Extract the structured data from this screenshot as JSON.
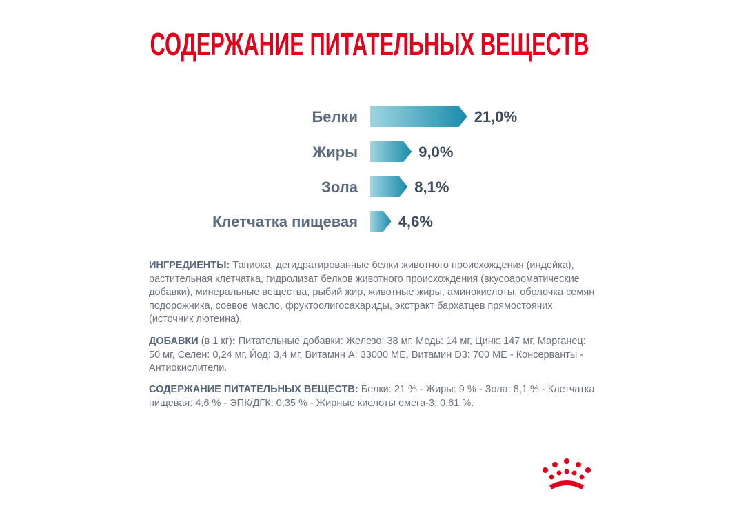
{
  "chart_data": {
    "type": "bar",
    "orientation": "horizontal",
    "title": "СОДЕРЖАНИЕ ПИТАТЕЛЬНЫХ ВЕЩЕСТВ",
    "categories": [
      "Белки",
      "Жиры",
      "Зола",
      "Клетчатка пищевая"
    ],
    "values": [
      21.0,
      9.0,
      8.1,
      4.6
    ],
    "value_labels": [
      "21,0%",
      "9,0%",
      "8,1%",
      "4,6%"
    ],
    "colors": [
      "#9ed6e0",
      "#1a8aab"
    ]
  },
  "text": {
    "ingredients": {
      "label": "ИНГРЕДИЕНТЫ:",
      "text": " Тапиока, дегидратированные белки животного происхождения (индейка), растительная клетчатка, гидролизат белков животного происхождения (вкусоароматические добавки), минеральные вещества, рыбий жир, животные жиры, аминокислоты, оболочка семян подорожника, соевое масло, фруктоолигосахариды, экстракт бархатцев прямостоячих (источник лютеина)."
    },
    "additives": {
      "label": "ДОБАВКИ",
      "note": " (в 1 кг)",
      "colon": ":",
      "text": " Питательные добавки: Железо: 38 мг, Медь: 14 мг, Цинк: 147 мг, Марганец: 50 мг, Селен: 0,24 мг, Йод: 3,4 мг, Витамин А: 33000 МЕ, Витамин D3: 700 МЕ - Консерванты - Антиокислители."
    },
    "nutrients": {
      "label": "СОДЕРЖАНИЕ ПИТАТЕЛЬНЫХ ВЕЩЕСТВ:",
      "text": " Белки: 21 % - Жиры: 9 % - Зола: 8,1 % - Клетчатка пищевая: 4,6 % - ЭПК/ДГК: 0,35 % - Жирные кислоты омега-3: 0,61 %."
    }
  }
}
